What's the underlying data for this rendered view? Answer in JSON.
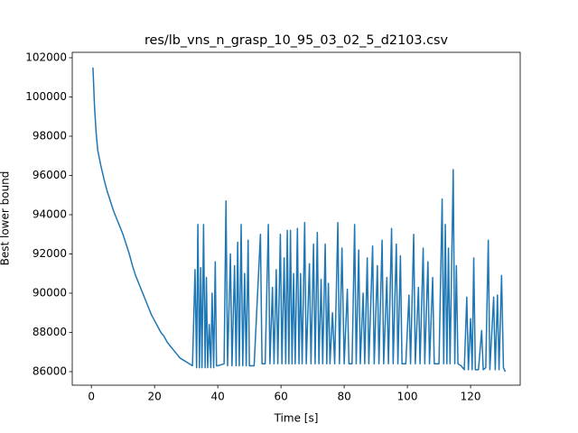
{
  "chart_data": {
    "type": "line",
    "title": "res/lb_vns_n_grasp_10_95_03_02_5_d2103.csv",
    "x_label": "Time [s]",
    "y_label": "Best lower bound",
    "xlim": [
      -6.05,
      135.7
    ],
    "ylim": [
      85310,
      102276
    ],
    "xticks": [
      0,
      20,
      40,
      60,
      80,
      100,
      120
    ],
    "yticks": [
      86000,
      88000,
      90000,
      92000,
      94000,
      96000,
      98000,
      100000,
      102000
    ],
    "series": [
      {
        "color": "#1f77b4",
        "x": [
          0.5,
          1,
          1.5,
          2,
          3,
          4,
          5,
          6,
          7,
          8,
          9,
          10,
          11,
          12,
          13,
          14,
          15,
          16,
          17,
          18,
          19,
          20,
          21,
          22,
          23,
          24,
          25,
          26,
          27,
          28,
          29,
          30,
          31,
          32,
          32.8,
          33.3,
          33.7,
          34.2,
          34.6,
          35,
          35.5,
          36,
          36.4,
          36.8,
          37.3,
          37.8,
          38.2,
          38.7,
          39.2,
          39.6,
          40,
          42,
          42.6,
          43.1,
          44,
          44.5,
          45.3,
          45.8,
          46.3,
          46.8,
          47.4,
          47.9,
          48.5,
          49,
          49.6,
          50,
          51.5,
          53.5,
          54,
          55,
          56,
          56.5,
          57.3,
          57.8,
          58.5,
          59,
          59.8,
          60.3,
          61,
          61.5,
          62,
          62.5,
          63,
          63.5,
          64,
          64.5,
          65.2,
          65.7,
          66.2,
          66.7,
          67.5,
          68,
          69,
          69.5,
          70.3,
          70.8,
          71.5,
          72,
          72.7,
          73.2,
          74,
          74.5,
          75,
          75.5,
          76.3,
          77,
          78,
          78.5,
          79.3,
          80,
          81,
          81.5,
          82.5,
          83.3,
          83.8,
          84.6,
          85.1,
          86,
          86.5,
          87.3,
          87.8,
          89,
          89.5,
          90.5,
          91,
          92,
          92.5,
          93.5,
          94,
          95,
          95.5,
          96.5,
          97,
          97.8,
          98.3,
          99.5,
          100.5,
          101,
          102,
          102.5,
          103.5,
          104,
          105,
          105.5,
          106.5,
          107,
          108,
          108.5,
          110,
          111,
          111.5,
          112,
          112.5,
          113,
          113.5,
          114.5,
          115,
          115.5,
          116,
          117,
          118,
          118.8,
          119.3,
          120,
          120.5,
          121,
          121.5,
          122.5,
          123.5,
          124,
          124.8,
          125.6,
          126.1,
          127.3,
          127.8,
          128.5,
          129,
          129.8,
          130.4,
          131
        ],
        "values": [
          101500,
          99500,
          98200,
          97300,
          96500,
          95800,
          95200,
          94700,
          94200,
          93800,
          93400,
          93000,
          92500,
          92000,
          91400,
          90900,
          90500,
          90100,
          89700,
          89300,
          88900,
          88600,
          88300,
          88000,
          87800,
          87500,
          87300,
          87100,
          86900,
          86700,
          86600,
          86500,
          86400,
          86300,
          91200,
          86200,
          93500,
          86200,
          91300,
          86200,
          93500,
          86200,
          90800,
          86200,
          88400,
          86200,
          90000,
          86200,
          91600,
          86300,
          86300,
          86400,
          94700,
          86300,
          92000,
          86300,
          91400,
          86300,
          92600,
          86300,
          93500,
          86300,
          91000,
          86300,
          92700,
          86300,
          86300,
          93000,
          86400,
          86400,
          93500,
          86400,
          90300,
          86400,
          91200,
          86400,
          93000,
          86400,
          91800,
          86400,
          93200,
          86400,
          93200,
          86400,
          91000,
          86400,
          93300,
          86400,
          91000,
          86400,
          93600,
          86400,
          91500,
          86400,
          92500,
          86400,
          93100,
          86400,
          90700,
          86400,
          92500,
          86400,
          90500,
          86400,
          89000,
          86400,
          93600,
          86400,
          92300,
          86400,
          90200,
          86400,
          86400,
          93500,
          86400,
          92200,
          86400,
          90000,
          86400,
          91800,
          86400,
          92400,
          86400,
          91400,
          86400,
          92700,
          86400,
          90800,
          86400,
          93300,
          86400,
          92500,
          86400,
          91900,
          86400,
          86400,
          89900,
          86400,
          93000,
          86400,
          90300,
          86400,
          92300,
          86400,
          91600,
          86400,
          90800,
          86400,
          86400,
          94800,
          86400,
          93500,
          86400,
          92300,
          86400,
          96300,
          86400,
          91400,
          86400,
          86300,
          86100,
          89800,
          86100,
          88700,
          86100,
          91800,
          86100,
          86100,
          88100,
          86100,
          86200,
          92700,
          86100,
          89800,
          86100,
          89900,
          86100,
          90900,
          86200,
          86000
        ]
      }
    ]
  }
}
